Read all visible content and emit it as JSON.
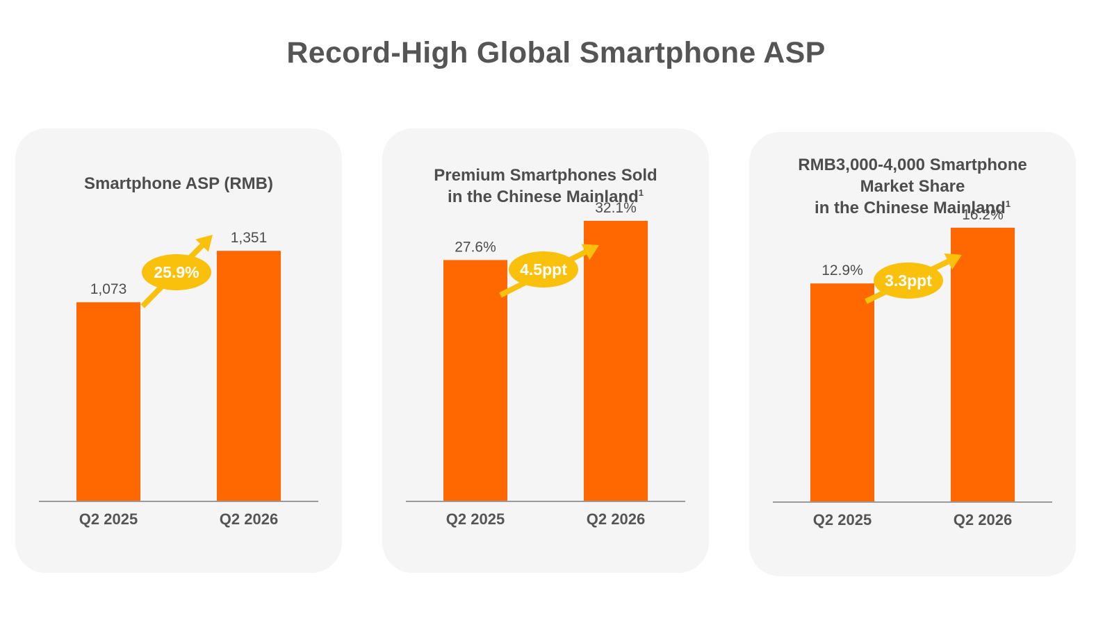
{
  "page": {
    "title": "Record-High Global Smartphone ASP"
  },
  "colors": {
    "bar": "#ff6700",
    "badge": "#f9c10c",
    "badge_text": "#ffffff",
    "axis": "#9a9a9a",
    "panel_bg": "#f5f5f5",
    "text": "#4d4d4d"
  },
  "chart_data": [
    {
      "type": "bar",
      "title_lines": [
        "Smartphone ASP (RMB)"
      ],
      "footnote": "",
      "categories": [
        "Q2 2025",
        "Q2 2026"
      ],
      "values": [
        1073,
        1351
      ],
      "value_labels": [
        "1,073",
        "1,351"
      ],
      "ylim": [
        0,
        1900
      ],
      "change_label": "25.9%",
      "change_icon": "up-arrow-icon",
      "grid": false
    },
    {
      "type": "bar",
      "title_lines": [
        "Premium Smartphones Sold",
        "in the Chinese Mainland"
      ],
      "footnote": "1",
      "categories": [
        "Q2 2025",
        "Q2 2026"
      ],
      "values": [
        27.6,
        32.1
      ],
      "value_labels": [
        "27.6%",
        "32.1%"
      ],
      "ylim": [
        0,
        40.3
      ],
      "change_label": "4.5ppt",
      "change_icon": "up-arrow-icon",
      "grid": false
    },
    {
      "type": "bar",
      "title_lines": [
        "RMB3,000-4,000 Smartphone",
        "Market Share",
        "in the Chinese Mainland"
      ],
      "footnote": "1",
      "categories": [
        "Q2 2025",
        "Q2 2026"
      ],
      "values": [
        12.9,
        16.2
      ],
      "value_labels": [
        "12.9%",
        "16.2%"
      ],
      "ylim": [
        0,
        20.8
      ],
      "change_label": "3.3ppt",
      "change_icon": "up-arrow-icon",
      "grid": false
    }
  ]
}
